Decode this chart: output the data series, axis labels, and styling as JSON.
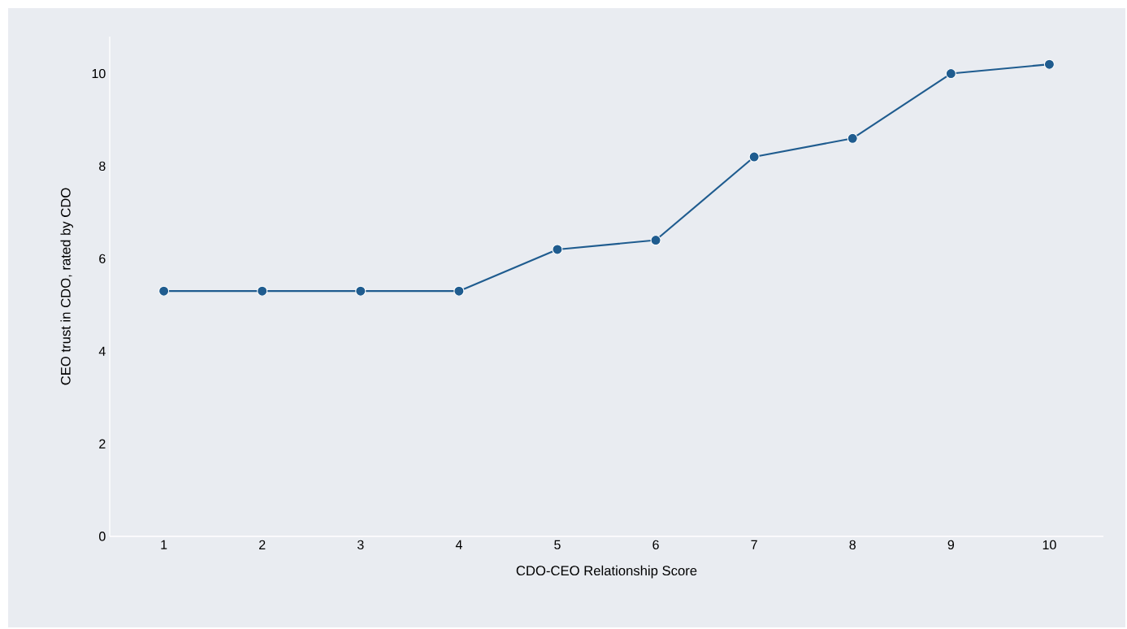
{
  "chart_data": {
    "type": "line",
    "xlabel": "CDO-CEO Relationship Score",
    "ylabel": "CEO trust in CDO, rated by CDO",
    "categories": [
      "1",
      "2",
      "3",
      "4",
      "5",
      "6",
      "7",
      "8",
      "9",
      "10"
    ],
    "series": [
      {
        "color": "#1f5c8f",
        "values": [
          5.3,
          5.3,
          5.3,
          5.3,
          6.2,
          6.4,
          8.2,
          8.6,
          10.0,
          10.2
        ]
      }
    ],
    "ylim": [
      0,
      10.8
    ],
    "yticks": [
      0,
      2,
      4,
      6,
      8,
      10
    ],
    "grid": false,
    "marker": "circle",
    "line_style": "solid"
  }
}
